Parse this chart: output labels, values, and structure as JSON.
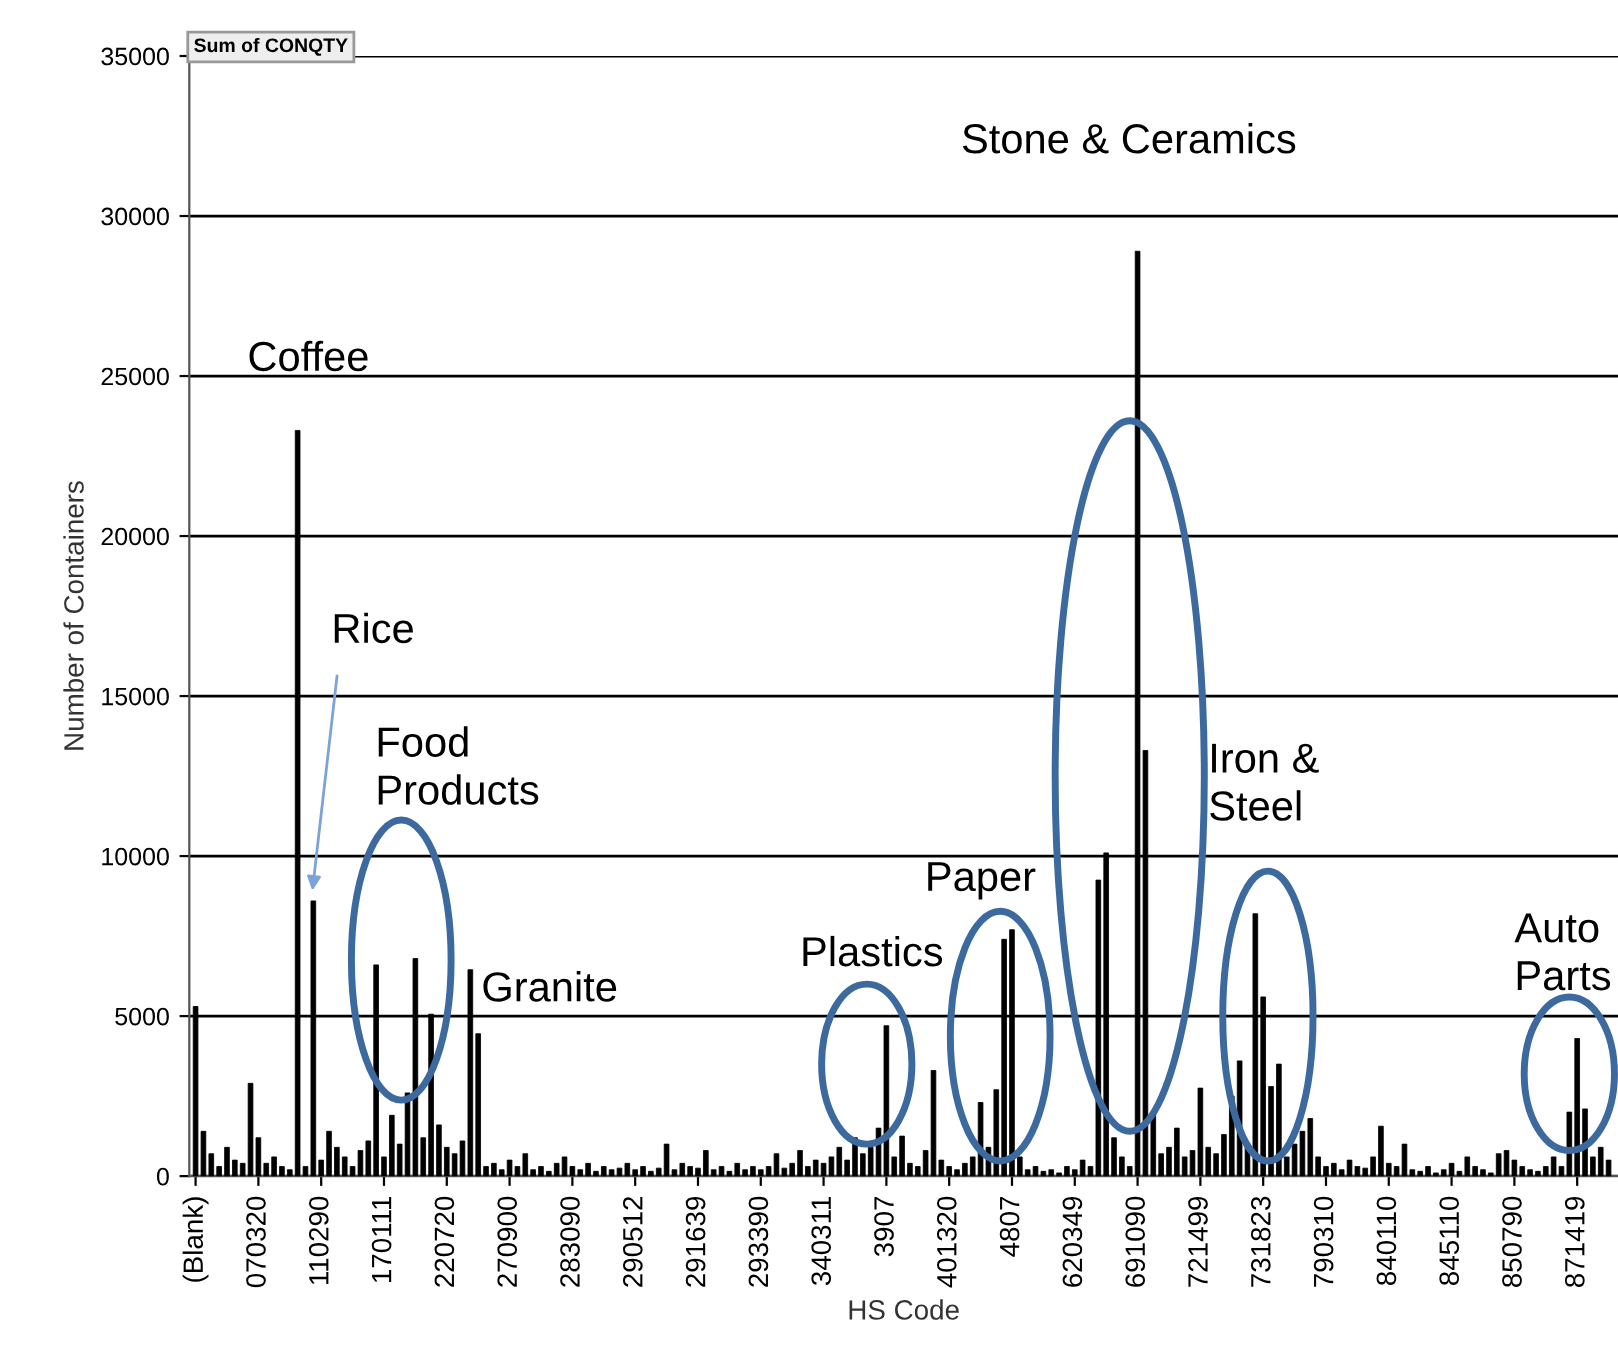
{
  "chart_data": {
    "type": "bar",
    "ylabel": "Number of Containers",
    "xlabel": "HS Code",
    "categories": [
      "(Blank)",
      null,
      null,
      null,
      null,
      null,
      null,
      null,
      "070320",
      null,
      null,
      null,
      null,
      null,
      null,
      null,
      "110290",
      null,
      null,
      null,
      null,
      null,
      null,
      null,
      "170111",
      null,
      null,
      null,
      null,
      null,
      null,
      null,
      "220720",
      null,
      null,
      null,
      null,
      null,
      null,
      null,
      "270900",
      null,
      null,
      null,
      null,
      null,
      null,
      null,
      "283090",
      null,
      null,
      null,
      null,
      null,
      null,
      null,
      "290512",
      null,
      null,
      null,
      null,
      null,
      null,
      null,
      "291639",
      null,
      null,
      null,
      null,
      null,
      null,
      null,
      "293390",
      null,
      null,
      null,
      null,
      null,
      null,
      null,
      "340311",
      null,
      null,
      null,
      null,
      null,
      null,
      null,
      "3907",
      null,
      null,
      null,
      null,
      null,
      null,
      null,
      "401320",
      null,
      null,
      null,
      null,
      null,
      null,
      null,
      "4807",
      null,
      null,
      null,
      null,
      null,
      null,
      null,
      "620349",
      null,
      null,
      null,
      null,
      null,
      null,
      null,
      "691090",
      null,
      null,
      null,
      null,
      null,
      null,
      null,
      "721499",
      null,
      null,
      null,
      null,
      null,
      null,
      null,
      "731823",
      null,
      null,
      null,
      null,
      null,
      null,
      null,
      "790310",
      null,
      null,
      null,
      null,
      null,
      null,
      null,
      "840110",
      null,
      null,
      null,
      null,
      null,
      null,
      null,
      "845110",
      null,
      null,
      null,
      null,
      null,
      null,
      null,
      "850790",
      null,
      null,
      null,
      null,
      null,
      null,
      null,
      "871419",
      null,
      null,
      null,
      null
    ],
    "values": [
      5300,
      1400,
      700,
      300,
      900,
      500,
      400,
      2900,
      1200,
      400,
      600,
      300,
      200,
      23300,
      300,
      8600,
      500,
      1400,
      900,
      600,
      300,
      800,
      1100,
      6600,
      600,
      1900,
      1000,
      2600,
      6800,
      1200,
      5060,
      1600,
      900,
      700,
      1100,
      6450,
      4450,
      300,
      400,
      200,
      500,
      300,
      700,
      200,
      300,
      150,
      400,
      600,
      300,
      200,
      400,
      150,
      300,
      200,
      250,
      400,
      200,
      300,
      150,
      250,
      1000,
      200,
      400,
      300,
      250,
      800,
      200,
      300,
      150,
      400,
      200,
      300,
      200,
      300,
      700,
      250,
      400,
      800,
      300,
      500,
      400,
      600,
      900,
      500,
      1200,
      700,
      900,
      1500,
      4700,
      600,
      1250,
      400,
      300,
      800,
      3300,
      500,
      300,
      200,
      400,
      600,
      2300,
      900,
      2700,
      7400,
      7700,
      600,
      200,
      300,
      150,
      200,
      100,
      300,
      200,
      500,
      300,
      9250,
      10100,
      1200,
      600,
      300,
      28900,
      13300,
      2000,
      700,
      900,
      1500,
      600,
      800,
      2750,
      900,
      700,
      1300,
      2500,
      3600,
      1000,
      8200,
      5600,
      2800,
      3500,
      600,
      1000,
      1400,
      1800,
      600,
      300,
      400,
      200,
      500,
      300,
      250,
      600,
      1560,
      400,
      300,
      1000,
      200,
      150,
      300,
      100,
      200,
      400,
      150,
      600,
      300,
      200,
      100,
      700,
      800,
      500,
      300,
      200,
      150,
      300,
      600,
      300,
      2000,
      4300,
      2100,
      600,
      900,
      500
    ],
    "color": "#000000",
    "ylim": [
      0,
      35000
    ],
    "yticks": [
      0,
      5000,
      10000,
      15000,
      20000,
      25000,
      30000,
      35000
    ],
    "grid": "y",
    "annotations": [
      "Sum of CONQTY",
      "Coffee",
      "Rice",
      "Food\nProducts",
      "Granite",
      "Plastics",
      "Paper",
      "Stone & Ceramics",
      "Iron &\nSteel",
      "Auto\nParts"
    ]
  }
}
